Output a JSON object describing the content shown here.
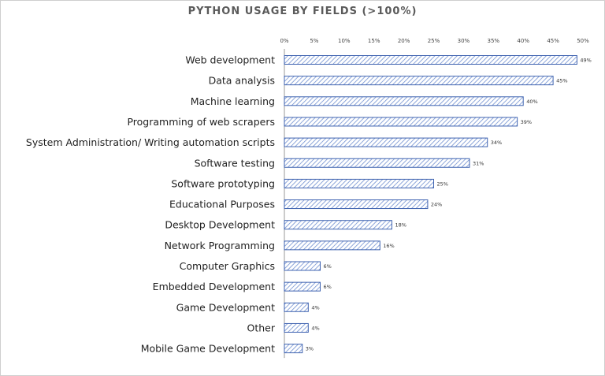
{
  "chart_data": {
    "type": "bar",
    "orientation": "horizontal",
    "title": "PYTHON USAGE BY FIELDS (>100%)",
    "categories": [
      "Web development",
      "Data analysis",
      "Machine learning",
      "Programming of web scrapers",
      "System Administration/ Writing automation scripts",
      "Software testing",
      "Software prototyping",
      "Educational Purposes",
      "Desktop Development",
      "Network Programming",
      "Computer Graphics",
      "Embedded Development",
      "Game Development",
      "Other",
      "Mobile Game Development"
    ],
    "values": [
      49,
      45,
      40,
      39,
      34,
      31,
      25,
      24,
      18,
      16,
      6,
      6,
      4,
      4,
      3
    ],
    "value_labels": [
      "49%",
      "45%",
      "40%",
      "39%",
      "34%",
      "31%",
      "25%",
      "24%",
      "18%",
      "16%",
      "6%",
      "6%",
      "4%",
      "4%",
      "3%"
    ],
    "x_ticks": [
      "0%",
      "5%",
      "10%",
      "15%",
      "20%",
      "25%",
      "30%",
      "35%",
      "40%",
      "45%",
      "50%"
    ],
    "xlim": [
      0,
      50
    ],
    "x_axis_position": "top",
    "grid": false,
    "bar_fill": "diagonal-hatch",
    "colors": {
      "bar_stroke": "#3f63b0",
      "bar_hatch": "#6f8fd0",
      "bar_background": "#ffffff",
      "axis": "#9a9a9a"
    }
  }
}
